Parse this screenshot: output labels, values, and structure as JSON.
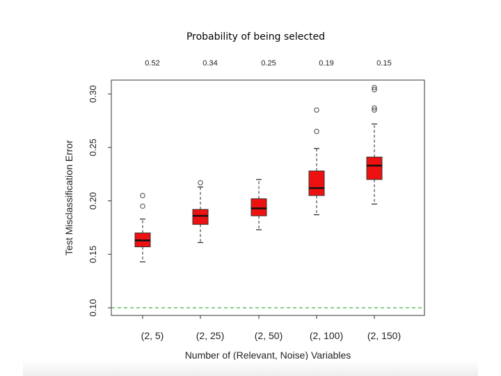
{
  "page_title": "Probability of being selected",
  "chart_data": {
    "type": "box",
    "title": "Probability of being selected",
    "xlabel": "Number of (Relevant, Noise) Variables",
    "ylabel": "Test Misclassification Error",
    "categories": [
      "(2, 5)",
      "(2, 25)",
      "(2, 50)",
      "(2, 100)",
      "(2, 150)"
    ],
    "top_axis_labels": [
      "0.52",
      "0.34",
      "0.25",
      "0.19",
      "0.15"
    ],
    "ylim": [
      0.1,
      0.31
    ],
    "yticks": [
      "0.10",
      "0.15",
      "0.20",
      "0.25",
      "0.30"
    ],
    "boxes": [
      {
        "category": "(2, 5)",
        "whisker_low": 0.143,
        "q1": 0.157,
        "median": 0.163,
        "q3": 0.17,
        "whisker_high": 0.183,
        "outliers": [
          0.195,
          0.205
        ]
      },
      {
        "category": "(2, 25)",
        "whisker_low": 0.161,
        "q1": 0.178,
        "median": 0.186,
        "q3": 0.192,
        "whisker_high": 0.213,
        "outliers": [
          0.217
        ]
      },
      {
        "category": "(2, 50)",
        "whisker_low": 0.173,
        "q1": 0.186,
        "median": 0.193,
        "q3": 0.202,
        "whisker_high": 0.22,
        "outliers": []
      },
      {
        "category": "(2, 100)",
        "whisker_low": 0.187,
        "q1": 0.205,
        "median": 0.212,
        "q3": 0.228,
        "whisker_high": 0.249,
        "outliers": [
          0.265,
          0.285
        ]
      },
      {
        "category": "(2, 150)",
        "whisker_low": 0.197,
        "q1": 0.22,
        "median": 0.233,
        "q3": 0.241,
        "whisker_high": 0.272,
        "outliers": [
          0.285,
          0.287,
          0.304,
          0.306
        ]
      }
    ],
    "reference_line": {
      "y": 0.1,
      "style": "dashed",
      "color": "#3cb043"
    },
    "box_color": "#ee1111",
    "grid": false,
    "legend": "none"
  }
}
